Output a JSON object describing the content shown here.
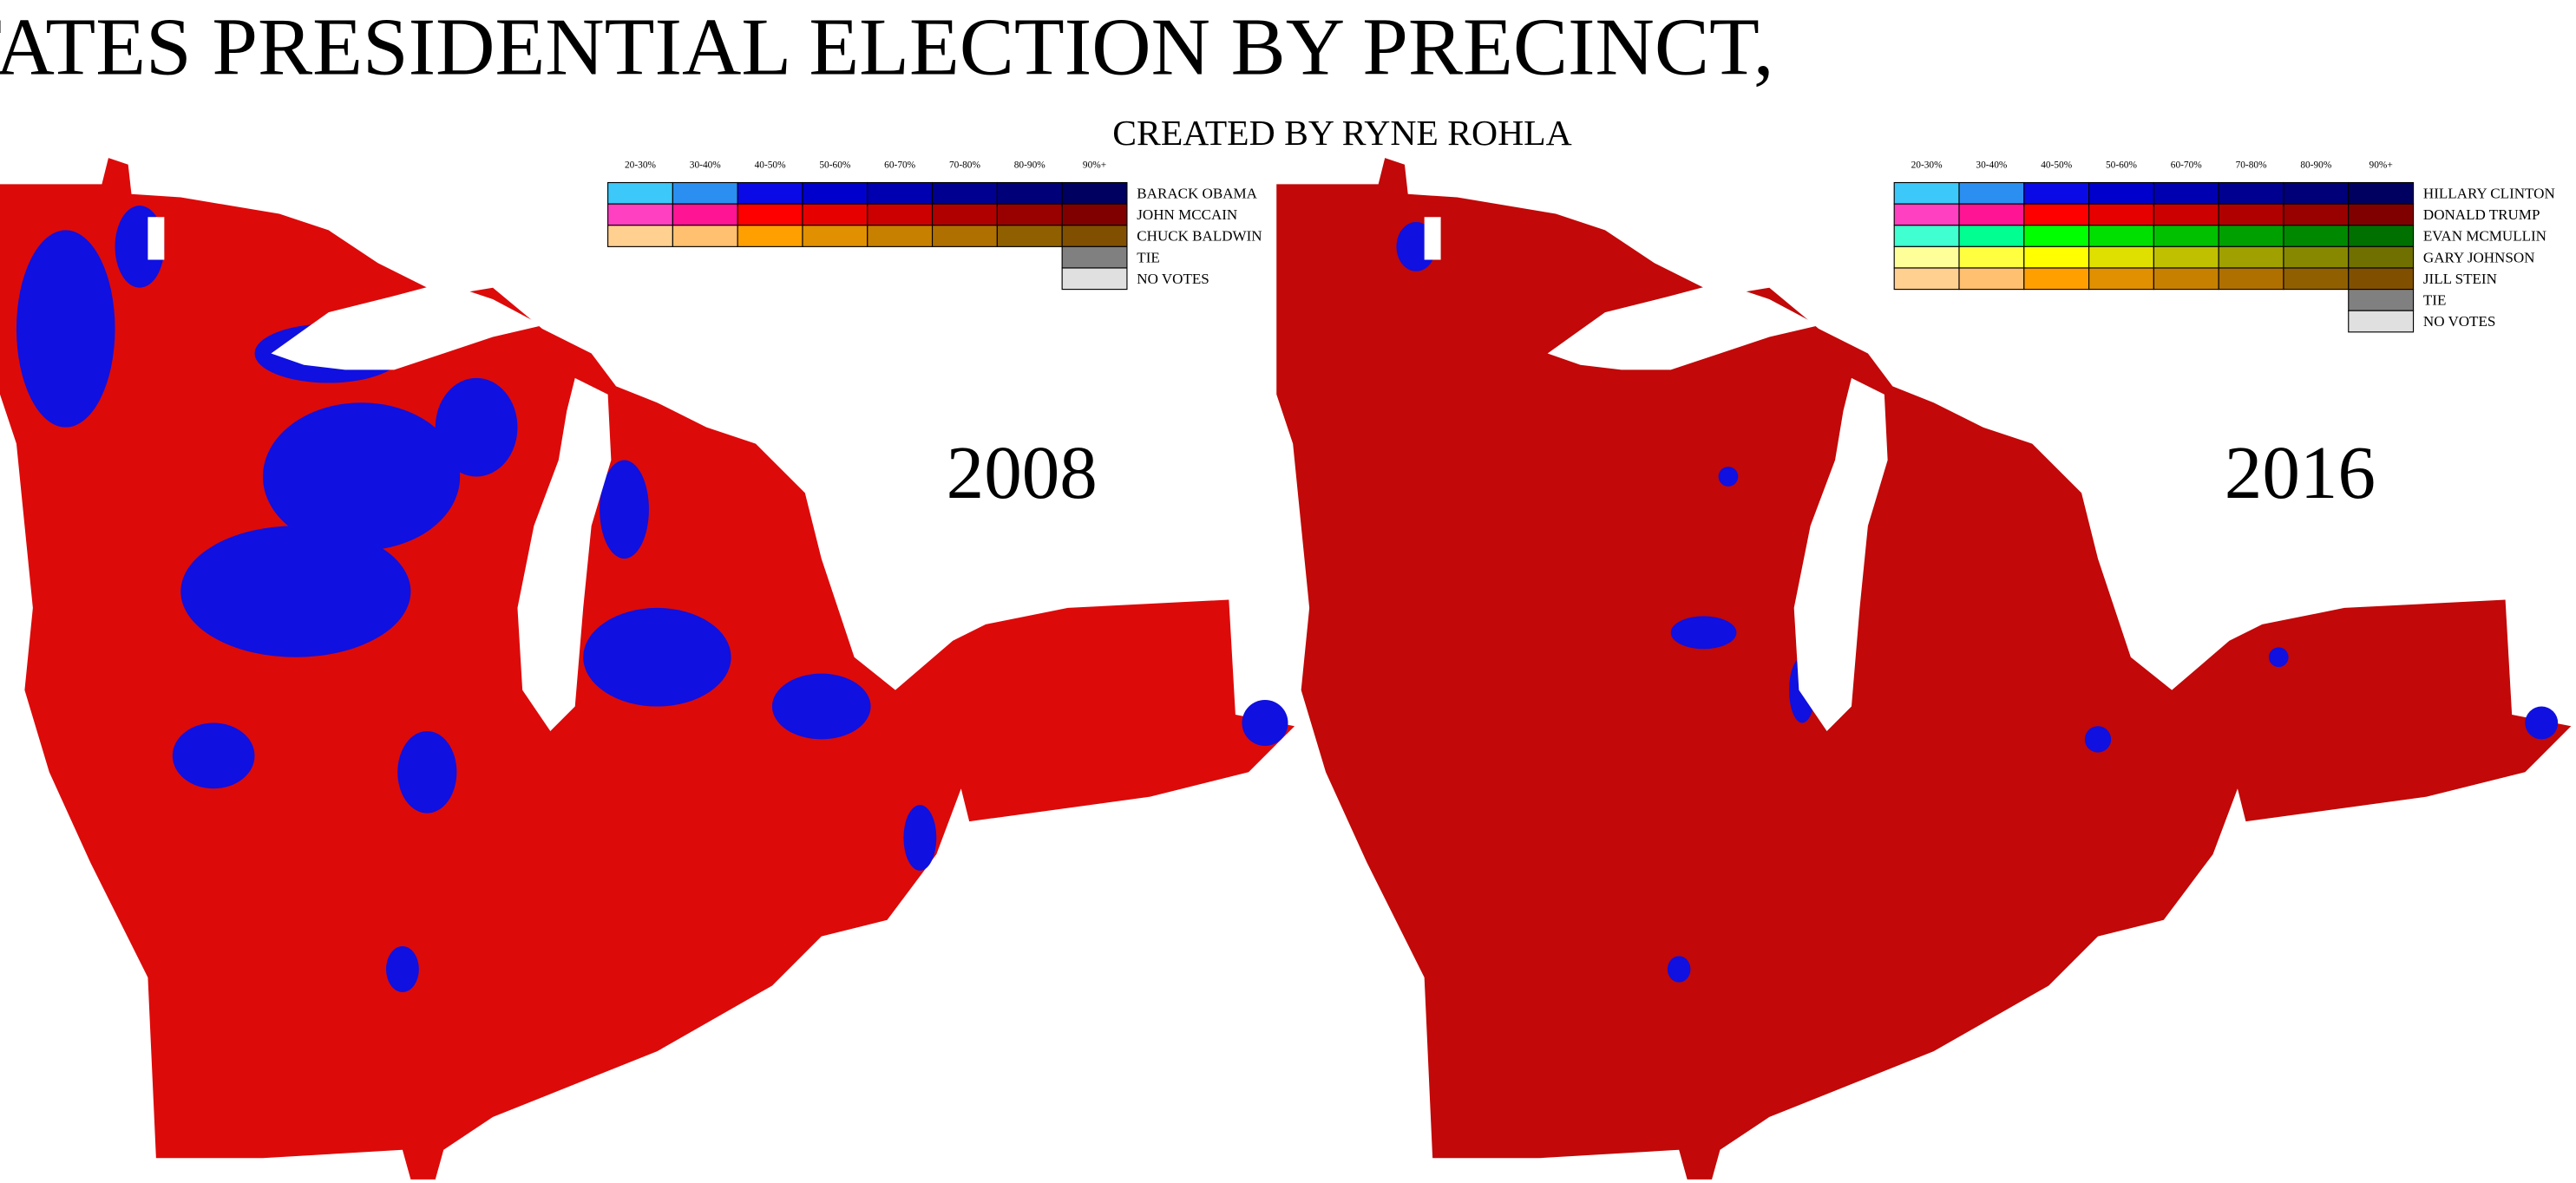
{
  "title": "UNITED STATES PRESIDENTIAL ELECTION BY PRECINCT,",
  "subtitle": "CREATED BY RYNE ROHLA",
  "maps": [
    {
      "year": "2008",
      "legend": {
        "bins": [
          "20-30%",
          "30-40%",
          "40-50%",
          "50-60%",
          "60-70%",
          "70-80%",
          "80-90%",
          "90%+"
        ],
        "rows": [
          {
            "name": "BARACK OBAMA",
            "colors": [
              "#3cc8f8",
              "#2a8ff0",
              "#0a0ae6",
              "#0000cc",
              "#0000b0",
              "#000090",
              "#000078",
              "#000060"
            ]
          },
          {
            "name": "JOHN MCCAIN",
            "colors": [
              "#ff40c0",
              "#ff1493",
              "#ff0000",
              "#e60000",
              "#cc0000",
              "#b00000",
              "#990000",
              "#800000"
            ]
          },
          {
            "name": "CHUCK BALDWIN",
            "colors": [
              "#ffd090",
              "#ffc070",
              "#ffa000",
              "#e09000",
              "#c88000",
              "#b07000",
              "#906000",
              "#805000"
            ]
          },
          {
            "name": "TIE",
            "colors": [
              "#808080"
            ]
          },
          {
            "name": "NO VOTES",
            "colors": [
              "#e0e0e0"
            ]
          }
        ]
      }
    },
    {
      "year": "2016",
      "legend": {
        "bins": [
          "20-30%",
          "30-40%",
          "40-50%",
          "50-60%",
          "60-70%",
          "70-80%",
          "80-90%",
          "90%+"
        ],
        "rows": [
          {
            "name": "HILLARY CLINTON",
            "colors": [
              "#3cc8f8",
              "#2a8ff0",
              "#0a0ae6",
              "#0000cc",
              "#0000b0",
              "#000090",
              "#000078",
              "#000060"
            ]
          },
          {
            "name": "DONALD TRUMP",
            "colors": [
              "#ff40c0",
              "#ff1493",
              "#ff0000",
              "#e60000",
              "#cc0000",
              "#b00000",
              "#990000",
              "#800000"
            ]
          },
          {
            "name": "EVAN MCMULLIN",
            "colors": [
              "#40ffd0",
              "#00ff90",
              "#00ff00",
              "#00e000",
              "#00c000",
              "#00a000",
              "#008800",
              "#007000"
            ]
          },
          {
            "name": "GARY JOHNSON",
            "colors": [
              "#ffff99",
              "#ffff40",
              "#ffff00",
              "#e0e000",
              "#c0c000",
              "#a0a000",
              "#888800",
              "#707000"
            ]
          },
          {
            "name": "JILL STEIN",
            "colors": [
              "#ffd090",
              "#ffc070",
              "#ffa000",
              "#e09000",
              "#c88000",
              "#b07000",
              "#906000",
              "#805000"
            ]
          },
          {
            "name": "TIE",
            "colors": [
              "#808080"
            ]
          },
          {
            "name": "NO VOTES",
            "colors": [
              "#e0e0e0"
            ]
          }
        ]
      }
    }
  ]
}
